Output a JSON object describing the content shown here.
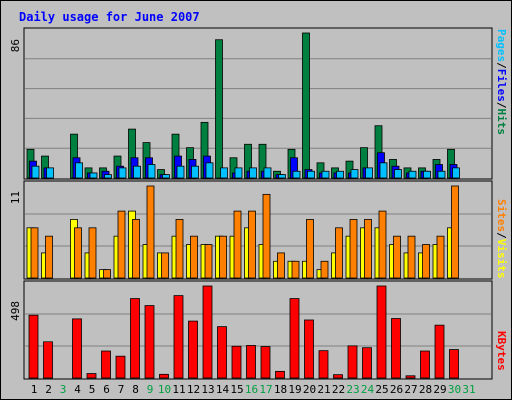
{
  "chart_data": {
    "type": "bar",
    "title": "Daily usage for June 2007",
    "categories": [
      "1",
      "2",
      "3",
      "4",
      "5",
      "6",
      "7",
      "8",
      "9",
      "10",
      "11",
      "12",
      "13",
      "14",
      "15",
      "16",
      "17",
      "18",
      "19",
      "20",
      "21",
      "22",
      "23",
      "24",
      "25",
      "26",
      "27",
      "28",
      "29",
      "30",
      "31"
    ],
    "weekend_days": [
      "3",
      "9",
      "10",
      "16",
      "17",
      "23",
      "24",
      "30",
      "31"
    ],
    "panels": [
      {
        "name": "hits-files-pages",
        "ymax_label": "86",
        "ylim": [
          0,
          86
        ],
        "series": [
          {
            "name": "Hits",
            "color": "#008040",
            "values": [
              17,
              13,
              0,
              26,
              6,
              6,
              13,
              29,
              21,
              5,
              26,
              18,
              33,
              82,
              12,
              20,
              20,
              4,
              17,
              86,
              9,
              6,
              10,
              18,
              31,
              11,
              6,
              6,
              11,
              17
            ]
          },
          {
            "name": "Files",
            "color": "#0000ff",
            "values": [
              10,
              6,
              0,
              12,
              3,
              4,
              7,
              12,
              12,
              2,
              13,
              11,
              13,
              0,
              3,
              4,
              4,
              2,
              12,
              5,
              3,
              3,
              3,
              6,
              15,
              7,
              3,
              4,
              8,
              8
            ]
          },
          {
            "name": "Pages",
            "color": "#00c0ff",
            "values": [
              7,
              6,
              0,
              9,
              3,
              2,
              6,
              7,
              8,
              2,
              7,
              7,
              9,
              6,
              6,
              6,
              6,
              2,
              4,
              4,
              4,
              4,
              5,
              6,
              9,
              5,
              4,
              4,
              4,
              6
            ]
          }
        ]
      },
      {
        "name": "visits-sites",
        "ymax_label": "11",
        "ylim": [
          0,
          11
        ],
        "series": [
          {
            "name": "Visits",
            "color": "#ffff00",
            "values": [
              6,
              3,
              0,
              7,
              3,
              1,
              5,
              8,
              4,
              3,
              5,
              4,
              4,
              5,
              5,
              6,
              4,
              2,
              2,
              2,
              1,
              3,
              5,
              6,
              6,
              4,
              3,
              3,
              4,
              6
            ]
          },
          {
            "name": "Sites",
            "color": "#ff8000",
            "values": [
              6,
              5,
              0,
              6,
              6,
              1,
              8,
              7,
              11,
              3,
              7,
              5,
              4,
              5,
              8,
              8,
              10,
              3,
              2,
              7,
              2,
              6,
              7,
              7,
              8,
              5,
              5,
              4,
              5,
              11
            ]
          }
        ]
      },
      {
        "name": "kbytes",
        "ymax_label": "498",
        "ylim": [
          0,
          498
        ],
        "series": [
          {
            "name": "KBytes",
            "color": "#ff0000",
            "values": [
              340,
              196,
              0,
              320,
              24,
              146,
              118,
              430,
              392,
              20,
              446,
              308,
              498,
              278,
              172,
              176,
              170,
              36,
              430,
              314,
              148,
              18,
              174,
              164,
              498,
              322,
              12,
              146,
              286,
              154
            ]
          }
        ]
      }
    ],
    "side_labels": {
      "panel1": [
        "Pages",
        "/",
        "Files",
        "/",
        "Hits"
      ],
      "panel2": [
        "Sites",
        "/",
        "Visits"
      ],
      "panel3": [
        "KBytes"
      ]
    }
  }
}
